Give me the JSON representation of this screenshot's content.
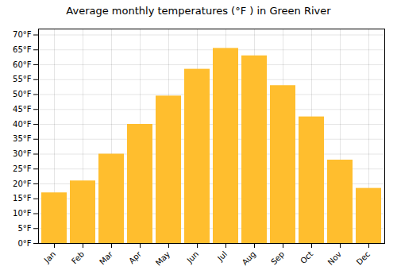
{
  "chart_data": {
    "type": "bar",
    "title": "Average monthly temperatures (°F ) in Green River",
    "categories": [
      "Jan",
      "Feb",
      "Mar",
      "Apr",
      "May",
      "Jun",
      "Jul",
      "Aug",
      "Sep",
      "Oct",
      "Nov",
      "Dec"
    ],
    "values": [
      17,
      21,
      30,
      40,
      49.5,
      58.5,
      65.5,
      63,
      53,
      42.5,
      28,
      18.5
    ],
    "color": "#FFBE2E",
    "ylim": [
      0,
      72
    ],
    "yticks": [
      {
        "value": 0,
        "label": "0°F"
      },
      {
        "value": 5,
        "label": "5°F"
      },
      {
        "value": 10,
        "label": "10°F"
      },
      {
        "value": 15,
        "label": "15°F"
      },
      {
        "value": 20,
        "label": "20°F"
      },
      {
        "value": 25,
        "label": "25°F"
      },
      {
        "value": 30,
        "label": "30°F"
      },
      {
        "value": 35,
        "label": "35°F"
      },
      {
        "value": 40,
        "label": "40°F"
      },
      {
        "value": 45,
        "label": "45°F"
      },
      {
        "value": 50,
        "label": "50°F"
      },
      {
        "value": 55,
        "label": "55°F"
      },
      {
        "value": 60,
        "label": "60°F"
      },
      {
        "value": 65,
        "label": "65°F"
      },
      {
        "value": 70,
        "label": "70°F"
      }
    ],
    "grid": true
  }
}
